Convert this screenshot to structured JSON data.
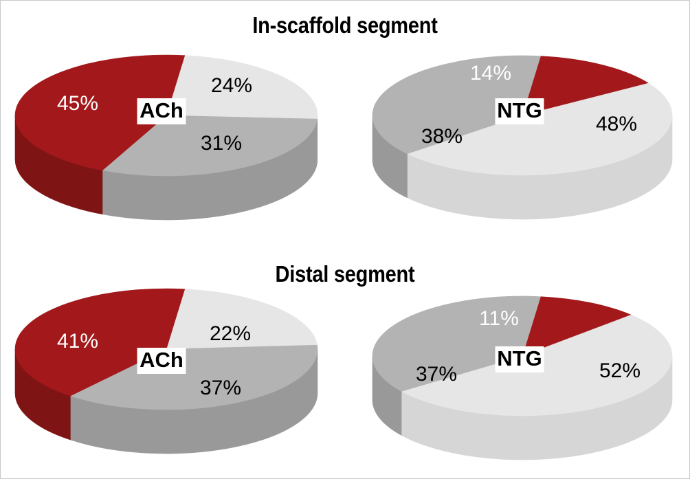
{
  "titles": {
    "top": "In-scaffold segment",
    "bottom": "Distal segment"
  },
  "colors": {
    "red": "#a3191b",
    "red_side": "#7f1414",
    "gray": "#b3b3b3",
    "gray_side": "#999999",
    "light": "#e6e6e6",
    "light_side": "#d6d6d6"
  },
  "chart_data": [
    {
      "type": "pie",
      "title": "In-scaffold segment",
      "center_label": "ACh",
      "slices": [
        {
          "value": 24,
          "label": "24%",
          "color": "light"
        },
        {
          "value": 31,
          "label": "31%",
          "color": "gray"
        },
        {
          "value": 45,
          "label": "45%",
          "color": "red"
        }
      ]
    },
    {
      "type": "pie",
      "title": "In-scaffold segment",
      "center_label": "NTG",
      "slices": [
        {
          "value": 14,
          "label": "14%",
          "color": "red"
        },
        {
          "value": 48,
          "label": "48%",
          "color": "light"
        },
        {
          "value": 38,
          "label": "38%",
          "color": "gray"
        }
      ]
    },
    {
      "type": "pie",
      "title": "Distal segment",
      "center_label": "ACh",
      "slices": [
        {
          "value": 22,
          "label": "22%",
          "color": "light"
        },
        {
          "value": 37,
          "label": "37%",
          "color": "gray"
        },
        {
          "value": 41,
          "label": "41%",
          "color": "red"
        }
      ]
    },
    {
      "type": "pie",
      "title": "Distal segment",
      "center_label": "NTG",
      "slices": [
        {
          "value": 11,
          "label": "11%",
          "color": "red"
        },
        {
          "value": 52,
          "label": "52%",
          "color": "light"
        },
        {
          "value": 37,
          "label": "37%",
          "color": "gray"
        }
      ]
    }
  ]
}
